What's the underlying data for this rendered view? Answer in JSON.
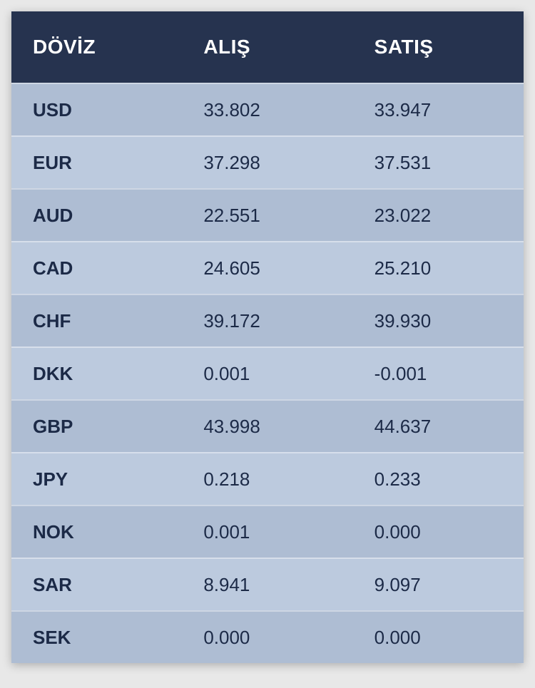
{
  "table": {
    "type": "table",
    "header_bg": "#26334f",
    "header_fg": "#ffffff",
    "row_bg_even": "#aebdd3",
    "row_bg_odd": "#bccade",
    "cell_fg": "#1c2a47",
    "border_color": "#ffffff",
    "font_size_header": 28,
    "font_size_cell": 26,
    "columns": [
      "DÖVİZ",
      "ALIŞ",
      "SATIŞ"
    ],
    "rows": [
      {
        "currency": "USD",
        "buy": "33.802",
        "sell": "33.947"
      },
      {
        "currency": "EUR",
        "buy": "37.298",
        "sell": "37.531"
      },
      {
        "currency": "AUD",
        "buy": "22.551",
        "sell": "23.022"
      },
      {
        "currency": "CAD",
        "buy": "24.605",
        "sell": "25.210"
      },
      {
        "currency": "CHF",
        "buy": "39.172",
        "sell": "39.930"
      },
      {
        "currency": "DKK",
        "buy": "0.001",
        "sell": "-0.001"
      },
      {
        "currency": "GBP",
        "buy": "43.998",
        "sell": "44.637"
      },
      {
        "currency": "JPY",
        "buy": "0.218",
        "sell": "0.233"
      },
      {
        "currency": "NOK",
        "buy": "0.001",
        "sell": "0.000"
      },
      {
        "currency": "SAR",
        "buy": "8.941",
        "sell": "9.097"
      },
      {
        "currency": "SEK",
        "buy": "0.000",
        "sell": "0.000"
      }
    ]
  }
}
